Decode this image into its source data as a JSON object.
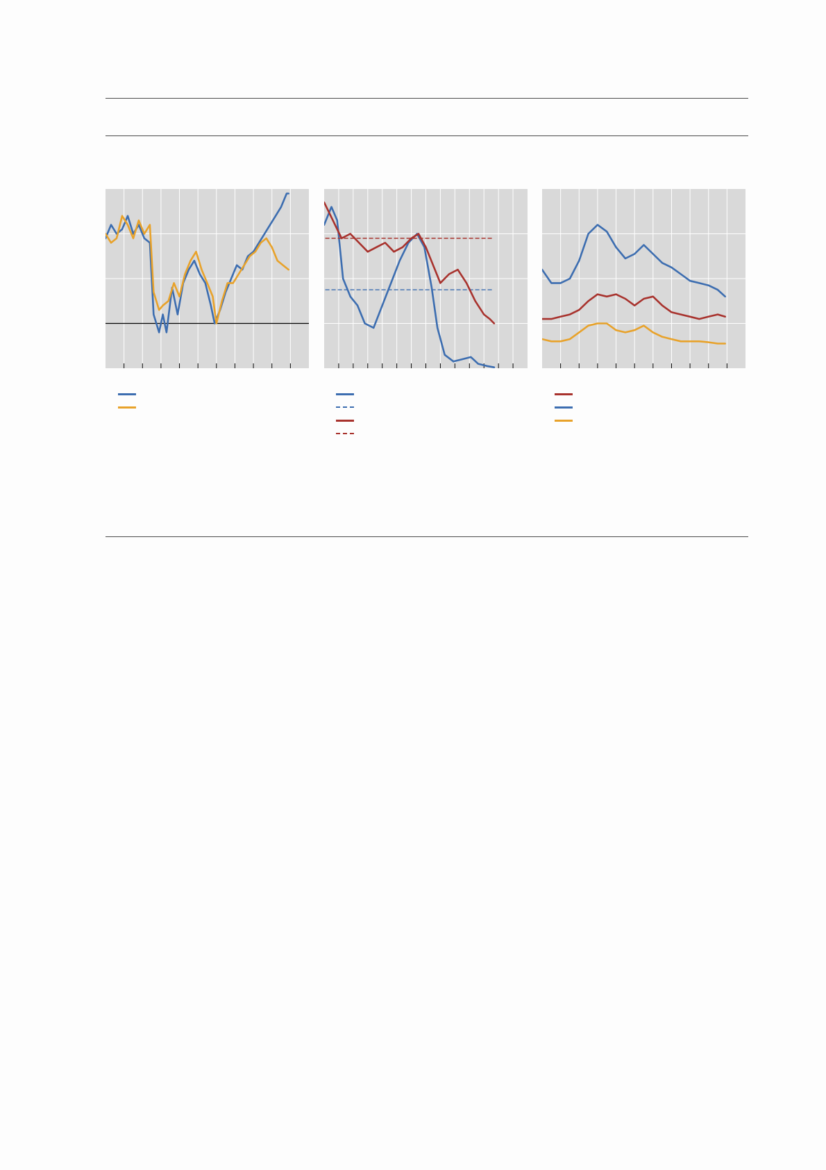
{
  "colors": {
    "plot_bg": "#d9d9d9",
    "grid": "#ffffff",
    "axis": "#000000",
    "blue": "#3c6db0",
    "orange": "#e8a22a",
    "red": "#a8322d"
  },
  "legends": [
    [
      {
        "label": "",
        "color": "#3c6db0",
        "style": "solid"
      },
      {
        "label": "",
        "color": "#e8a22a",
        "style": "solid"
      }
    ],
    [
      {
        "label": "",
        "color": "#3c6db0",
        "style": "solid"
      },
      {
        "label": "",
        "color": "#3c6db0",
        "style": "dashed"
      },
      {
        "label": "",
        "color": "#a8322d",
        "style": "solid"
      },
      {
        "label": "",
        "color": "#a8322d",
        "style": "dashed"
      }
    ],
    [
      {
        "label": "",
        "color": "#a8322d",
        "style": "solid"
      },
      {
        "label": "",
        "color": "#3c6db0",
        "style": "solid"
      },
      {
        "label": "",
        "color": "#e8a22a",
        "style": "solid"
      }
    ]
  ],
  "chart_data": [
    {
      "type": "line",
      "title": "",
      "ylim": [
        -1,
        3
      ],
      "xlim": [
        0,
        11
      ],
      "reference_line_y": 0,
      "grid": true,
      "series": [
        {
          "color": "#3c6db0",
          "values": [
            [
              0,
              1.9
            ],
            [
              0.3,
              2.2
            ],
            [
              0.6,
              2.0
            ],
            [
              0.9,
              2.1
            ],
            [
              1.2,
              2.4
            ],
            [
              1.5,
              2.0
            ],
            [
              1.8,
              2.2
            ],
            [
              2.1,
              1.9
            ],
            [
              2.4,
              1.8
            ],
            [
              2.6,
              0.2
            ],
            [
              2.9,
              -0.2
            ],
            [
              3.1,
              0.2
            ],
            [
              3.3,
              -0.2
            ],
            [
              3.6,
              0.8
            ],
            [
              3.9,
              0.2
            ],
            [
              4.2,
              0.9
            ],
            [
              4.5,
              1.2
            ],
            [
              4.8,
              1.4
            ],
            [
              5.1,
              1.1
            ],
            [
              5.4,
              0.9
            ],
            [
              5.7,
              0.4
            ],
            [
              5.9,
              0.0
            ],
            [
              6.2,
              0.3
            ],
            [
              6.5,
              0.7
            ],
            [
              6.8,
              1.0
            ],
            [
              7.1,
              1.3
            ],
            [
              7.4,
              1.2
            ],
            [
              7.7,
              1.5
            ],
            [
              8.0,
              1.6
            ],
            [
              8.3,
              1.8
            ],
            [
              8.6,
              2.0
            ],
            [
              8.9,
              2.2
            ],
            [
              9.2,
              2.4
            ],
            [
              9.5,
              2.6
            ],
            [
              9.8,
              2.9
            ],
            [
              9.9,
              2.9
            ]
          ]
        },
        {
          "color": "#e8a22a",
          "values": [
            [
              0,
              2.0
            ],
            [
              0.3,
              1.8
            ],
            [
              0.6,
              1.9
            ],
            [
              0.9,
              2.4
            ],
            [
              1.2,
              2.2
            ],
            [
              1.5,
              1.9
            ],
            [
              1.8,
              2.3
            ],
            [
              2.1,
              2.0
            ],
            [
              2.4,
              2.2
            ],
            [
              2.6,
              0.7
            ],
            [
              2.9,
              0.3
            ],
            [
              3.1,
              0.4
            ],
            [
              3.4,
              0.5
            ],
            [
              3.7,
              0.9
            ],
            [
              4.0,
              0.6
            ],
            [
              4.3,
              1.1
            ],
            [
              4.6,
              1.4
            ],
            [
              4.9,
              1.6
            ],
            [
              5.2,
              1.2
            ],
            [
              5.5,
              0.9
            ],
            [
              5.8,
              0.6
            ],
            [
              6.0,
              0.0
            ],
            [
              6.3,
              0.5
            ],
            [
              6.6,
              0.9
            ],
            [
              6.9,
              0.9
            ],
            [
              7.2,
              1.1
            ],
            [
              7.5,
              1.3
            ],
            [
              7.8,
              1.5
            ],
            [
              8.1,
              1.6
            ],
            [
              8.4,
              1.8
            ],
            [
              8.7,
              1.9
            ],
            [
              9.0,
              1.7
            ],
            [
              9.3,
              1.4
            ],
            [
              9.6,
              1.3
            ],
            [
              9.9,
              1.2
            ]
          ]
        }
      ]
    },
    {
      "type": "line",
      "title": "",
      "ylim": [
        0,
        4
      ],
      "xlim": [
        0,
        14
      ],
      "grid": true,
      "series": [
        {
          "color": "#3c6db0",
          "style": "solid",
          "values": [
            [
              0,
              3.2
            ],
            [
              0.5,
              3.6
            ],
            [
              0.9,
              3.3
            ],
            [
              1.3,
              2.0
            ],
            [
              1.8,
              1.6
            ],
            [
              2.3,
              1.4
            ],
            [
              2.8,
              1.0
            ],
            [
              3.4,
              0.9
            ],
            [
              4.0,
              1.4
            ],
            [
              4.6,
              1.9
            ],
            [
              5.2,
              2.4
            ],
            [
              5.8,
              2.8
            ],
            [
              6.4,
              3.0
            ],
            [
              6.9,
              2.7
            ],
            [
              7.4,
              1.8
            ],
            [
              7.8,
              0.9
            ],
            [
              8.3,
              0.3
            ],
            [
              8.9,
              0.15
            ],
            [
              9.5,
              0.2
            ],
            [
              10.1,
              0.25
            ],
            [
              10.6,
              0.1
            ],
            [
              11.2,
              0.05
            ],
            [
              11.7,
              0.02
            ]
          ]
        },
        {
          "color": "#3c6db0",
          "style": "dashed",
          "values": [
            [
              0.1,
              1.75
            ],
            [
              11.7,
              1.75
            ]
          ]
        },
        {
          "color": "#a8322d",
          "style": "solid",
          "values": [
            [
              0,
              3.7
            ],
            [
              0.6,
              3.3
            ],
            [
              1.2,
              2.9
            ],
            [
              1.8,
              3.0
            ],
            [
              2.4,
              2.8
            ],
            [
              3.0,
              2.6
            ],
            [
              3.6,
              2.7
            ],
            [
              4.2,
              2.8
            ],
            [
              4.8,
              2.6
            ],
            [
              5.4,
              2.7
            ],
            [
              6.0,
              2.9
            ],
            [
              6.5,
              3.0
            ],
            [
              7.0,
              2.7
            ],
            [
              7.5,
              2.3
            ],
            [
              8.0,
              1.9
            ],
            [
              8.6,
              2.1
            ],
            [
              9.2,
              2.2
            ],
            [
              9.8,
              1.9
            ],
            [
              10.4,
              1.5
            ],
            [
              11.0,
              1.2
            ],
            [
              11.4,
              1.1
            ],
            [
              11.7,
              1.0
            ]
          ]
        },
        {
          "color": "#a8322d",
          "style": "dashed",
          "values": [
            [
              0.1,
              2.9
            ],
            [
              11.7,
              2.9
            ]
          ]
        }
      ]
    },
    {
      "type": "line",
      "title": "",
      "ylim": [
        0,
        4
      ],
      "xlim": [
        0,
        11
      ],
      "grid": true,
      "series": [
        {
          "color": "#a8322d",
          "values": [
            [
              0,
              1.1
            ],
            [
              0.5,
              1.1
            ],
            [
              1.0,
              1.15
            ],
            [
              1.5,
              1.2
            ],
            [
              2.0,
              1.3
            ],
            [
              2.5,
              1.5
            ],
            [
              3.0,
              1.65
            ],
            [
              3.5,
              1.6
            ],
            [
              4.0,
              1.65
            ],
            [
              4.5,
              1.55
            ],
            [
              5.0,
              1.4
            ],
            [
              5.5,
              1.55
            ],
            [
              6.0,
              1.6
            ],
            [
              6.5,
              1.4
            ],
            [
              7.0,
              1.25
            ],
            [
              7.5,
              1.2
            ],
            [
              8.0,
              1.15
            ],
            [
              8.5,
              1.1
            ],
            [
              9.0,
              1.15
            ],
            [
              9.5,
              1.2
            ],
            [
              9.9,
              1.15
            ]
          ]
        },
        {
          "color": "#3c6db0",
          "values": [
            [
              0,
              2.2
            ],
            [
              0.5,
              1.9
            ],
            [
              1.0,
              1.9
            ],
            [
              1.5,
              2.0
            ],
            [
              2.0,
              2.4
            ],
            [
              2.5,
              3.0
            ],
            [
              3.0,
              3.2
            ],
            [
              3.5,
              3.05
            ],
            [
              4.0,
              2.7
            ],
            [
              4.5,
              2.45
            ],
            [
              5.0,
              2.55
            ],
            [
              5.5,
              2.75
            ],
            [
              6.0,
              2.55
            ],
            [
              6.5,
              2.35
            ],
            [
              7.0,
              2.25
            ],
            [
              7.5,
              2.1
            ],
            [
              8.0,
              1.95
            ],
            [
              8.5,
              1.9
            ],
            [
              9.0,
              1.85
            ],
            [
              9.5,
              1.75
            ],
            [
              9.9,
              1.6
            ]
          ]
        },
        {
          "color": "#e8a22a",
          "values": [
            [
              0,
              0.65
            ],
            [
              0.5,
              0.6
            ],
            [
              1.0,
              0.6
            ],
            [
              1.5,
              0.65
            ],
            [
              2.0,
              0.8
            ],
            [
              2.5,
              0.95
            ],
            [
              3.0,
              1.0
            ],
            [
              3.5,
              1.0
            ],
            [
              4.0,
              0.85
            ],
            [
              4.5,
              0.8
            ],
            [
              5.0,
              0.85
            ],
            [
              5.5,
              0.95
            ],
            [
              6.0,
              0.8
            ],
            [
              6.5,
              0.7
            ],
            [
              7.0,
              0.65
            ],
            [
              7.5,
              0.6
            ],
            [
              8.0,
              0.6
            ],
            [
              8.5,
              0.6
            ],
            [
              9.0,
              0.58
            ],
            [
              9.5,
              0.55
            ],
            [
              9.9,
              0.55
            ]
          ]
        }
      ]
    }
  ]
}
